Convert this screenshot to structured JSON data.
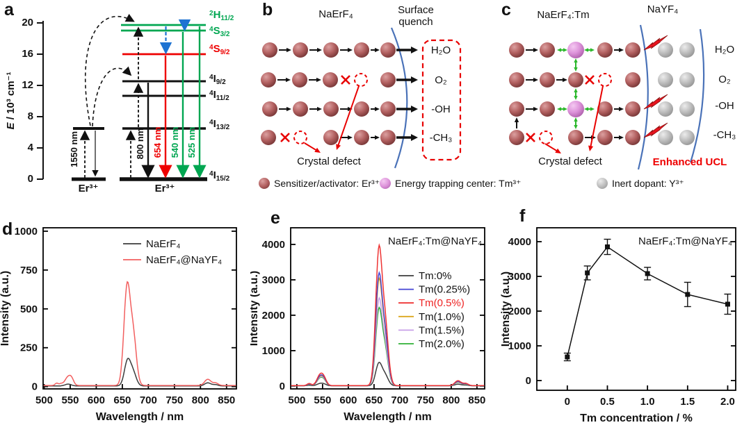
{
  "figure": {
    "panel_letters": {
      "a": "a",
      "b": "b",
      "c": "c",
      "d": "d",
      "e": "e",
      "f": "f"
    }
  },
  "panelA": {
    "ylabel_e": "E",
    "ylabel_rest": " / 10³ cm⁻¹",
    "yticks": [
      "20",
      "16",
      "12",
      "8",
      "4",
      "0"
    ],
    "ion_left": "Er³⁺",
    "ion_right": "Er³⁺",
    "wavelengths": {
      "nir_left": "1550 nm",
      "nir_right": "800 nm",
      "red": "654 nm",
      "green1": "540 nm",
      "green2": "525 nm"
    },
    "levels": [
      {
        "sup": "2",
        "main": "H",
        "sub": "11/2"
      },
      {
        "sup": "4",
        "main": "S",
        "sub": "3/2"
      },
      {
        "sup": "4",
        "main": "S",
        "sub": "9/2"
      },
      {
        "sup": "4",
        "main": "I",
        "sub": "9/2"
      },
      {
        "sup": "4",
        "main": "I",
        "sub": "11/2"
      },
      {
        "sup": "4",
        "main": "I",
        "sub": "13/2"
      },
      {
        "sup": "4",
        "main": "I",
        "sub": "15/2"
      }
    ]
  },
  "panelB": {
    "title": "NaErF₄",
    "surface_quench": "Surface quench",
    "quenchers": [
      "H₂O",
      "O₂",
      "-OH",
      "-CH₃"
    ],
    "crystal_defect": "Crystal defect"
  },
  "panelC": {
    "title": "NaErF₄:Tm",
    "shell": "NaYF₄",
    "quenchers": [
      "H₂O",
      "O₂",
      "-OH",
      "-CH₃"
    ],
    "crystal_defect": "Crystal defect",
    "enhanced_ucl": "Enhanced UCL"
  },
  "legend": {
    "items": [
      {
        "label": "Sensitizer/activator: Er³⁺"
      },
      {
        "label": "Energy trapping center: Tm³⁺"
      },
      {
        "label": "Inert dopant: Y³⁺"
      }
    ]
  },
  "chart_data": [
    {
      "id": "d",
      "type": "line",
      "xlabel": "Wavelength / nm",
      "ylabel": "Intensity (a.u.)",
      "xlim": [
        498,
        869
      ],
      "ylim": [
        -15,
        1022
      ],
      "xticks": [
        500,
        550,
        600,
        650,
        700,
        750,
        800,
        850
      ],
      "yticks": [
        0,
        250,
        500,
        750,
        1000
      ],
      "series": [
        {
          "name": "NaErF₄",
          "color": "#3c3c3c",
          "baseline": 4,
          "peaks": [
            [
              546,
              12,
              6
            ],
            [
              660,
              160,
              6
            ],
            [
              671,
              80,
              6
            ],
            [
              814,
              20,
              6
            ],
            [
              829,
              8,
              5
            ]
          ]
        },
        {
          "name": "NaErF₄@NaYF₄",
          "color": "#f25f5f",
          "baseline": 7,
          "peaks": [
            [
              524,
              15,
              3
            ],
            [
              532,
              10,
              3
            ],
            [
              546,
              55,
              6
            ],
            [
              553,
              28,
              4
            ],
            [
              659,
              620,
              6
            ],
            [
              671,
              310,
              6
            ],
            [
              814,
              40,
              6
            ],
            [
              829,
              16,
              5
            ]
          ]
        }
      ]
    },
    {
      "id": "e",
      "type": "line",
      "annotation": "NaErF₄:Tm@NaYF₄",
      "xlabel": "Wavelength / nm",
      "ylabel": "Intensity (a.u.)",
      "xlim": [
        488,
        865
      ],
      "ylim": [
        -80,
        4470
      ],
      "xticks": [
        500,
        550,
        600,
        650,
        700,
        750,
        800,
        850
      ],
      "yticks": [
        0,
        1000,
        2000,
        3000,
        4000
      ],
      "series": [
        {
          "name": "Tm:0%",
          "color": "#3c3c3c",
          "baseline": 8,
          "peaks": [
            [
              524,
              15,
              4
            ],
            [
              545,
              60,
              6
            ],
            [
              553,
              35,
              5
            ],
            [
              659,
              600,
              6
            ],
            [
              671,
              300,
              6.5
            ],
            [
              813,
              45,
              6
            ],
            [
              828,
              20,
              5
            ]
          ]
        },
        {
          "name": "Tm(0.25%)",
          "color": "#4444d4",
          "baseline": 10,
          "peaks": [
            [
              524,
              50,
              4
            ],
            [
              545,
              250,
              6
            ],
            [
              553,
              140,
              5
            ],
            [
              659,
              2900,
              6
            ],
            [
              671,
              1400,
              6.5
            ],
            [
              813,
              120,
              6
            ],
            [
              828,
              55,
              5
            ]
          ]
        },
        {
          "name": "Tm(0.5%)",
          "color": "#ee3333",
          "label_color": "#ee2222",
          "baseline": 12,
          "peaks": [
            [
              524,
              60,
              4
            ],
            [
              545,
              290,
              6
            ],
            [
              553,
              160,
              5
            ],
            [
              659,
              3600,
              6
            ],
            [
              671,
              1750,
              6.5
            ],
            [
              813,
              140,
              6
            ],
            [
              828,
              63,
              5
            ]
          ]
        },
        {
          "name": "Tm(1.0%)",
          "color": "#dca71e",
          "baseline": 10,
          "peaks": [
            [
              524,
              45,
              4
            ],
            [
              545,
              235,
              6
            ],
            [
              553,
              130,
              5
            ],
            [
              659,
              2750,
              6
            ],
            [
              671,
              1350,
              6.5
            ],
            [
              813,
              110,
              6
            ],
            [
              828,
              50,
              5
            ]
          ]
        },
        {
          "name": "Tm(1.5%)",
          "color": "#c79fe8",
          "baseline": 9,
          "peaks": [
            [
              524,
              42,
              4
            ],
            [
              545,
              215,
              6
            ],
            [
              553,
              120,
              5
            ],
            [
              659,
              2250,
              6
            ],
            [
              671,
              1100,
              6.5
            ],
            [
              813,
              100,
              6
            ],
            [
              828,
              45,
              5
            ]
          ]
        },
        {
          "name": "Tm(2.0%)",
          "color": "#2eb135",
          "baseline": 9,
          "peaks": [
            [
              524,
              40,
              4
            ],
            [
              545,
              200,
              6
            ],
            [
              553,
              110,
              5
            ],
            [
              659,
              2000,
              6
            ],
            [
              671,
              1000,
              6.5
            ],
            [
              813,
              95,
              6
            ],
            [
              828,
              43,
              5
            ]
          ]
        }
      ]
    },
    {
      "id": "f",
      "type": "scatter",
      "annotation": "NaErF₄:Tm@NaYF₄",
      "xlabel": "Tm concentration / %",
      "ylabel": "Intensity (a.u.)",
      "xlim": [
        -0.38,
        2.1
      ],
      "ylim": [
        -280,
        4400
      ],
      "xticks": [
        0,
        0.5,
        1.0,
        1.5,
        2.0
      ],
      "xtick_labels": [
        "0",
        "0.5",
        "1.0",
        "1.5",
        "2.0"
      ],
      "yticks": [
        0,
        1000,
        2000,
        3000,
        4000
      ],
      "color": "#111111",
      "x": [
        0,
        0.25,
        0.5,
        1.0,
        1.5,
        2.0
      ],
      "y": [
        680,
        3100,
        3850,
        3080,
        2480,
        2200
      ],
      "yerr": [
        110,
        200,
        220,
        180,
        350,
        290
      ]
    }
  ]
}
